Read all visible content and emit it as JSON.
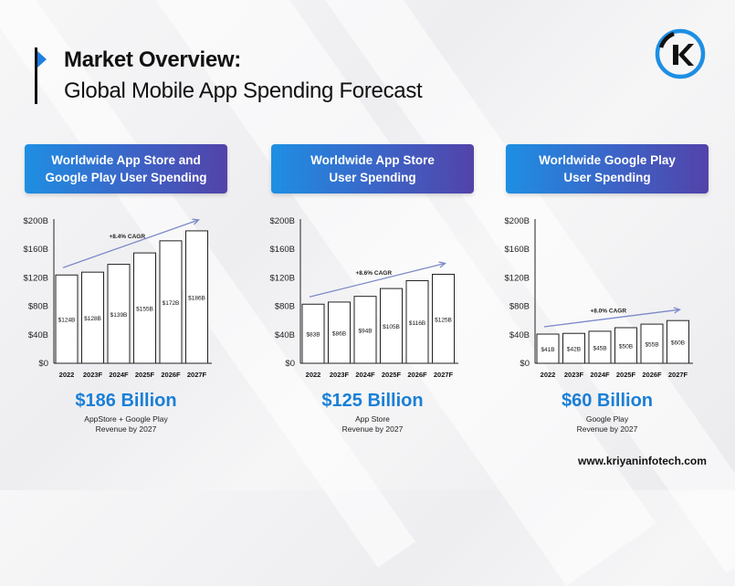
{
  "header": {
    "title_bold": "Market Overview:",
    "title_regular": "Global Mobile App Spending Forecast"
  },
  "logo": {
    "icon": "kriyan-logo-icon",
    "letter": "K",
    "colors": [
      "#1e8fe3",
      "#111111"
    ]
  },
  "accent_gradient": [
    "#1e8fe3",
    "#3d63c6",
    "#5243a9"
  ],
  "value_color": "#1a7fd6",
  "panels": [
    {
      "header_line1": "Worldwide App Store and",
      "header_line2": "Google Play User Spending",
      "highlight": "$186 Billion",
      "caption_line1": "AppStore + Google Play",
      "caption_line2": "Revenue by 2027"
    },
    {
      "header_line1": "Worldwide App Store",
      "header_line2": "User Spending",
      "highlight": "$125 Billion",
      "caption_line1": "App Store",
      "caption_line2": "Revenue by 2027"
    },
    {
      "header_line1": "Worldwide Google Play",
      "header_line2": "User Spending",
      "highlight": "$60 Billion",
      "caption_line1": "Google Play",
      "caption_line2": "Revenue by 2027"
    }
  ],
  "chart_data": [
    {
      "type": "bar",
      "categories": [
        "2022",
        "2023F",
        "2024F",
        "2025F",
        "2026F",
        "2027F"
      ],
      "values": [
        124,
        128,
        139,
        155,
        172,
        186
      ],
      "value_labels": [
        "$124B",
        "$128B",
        "$139B",
        "$155B",
        "$172B",
        "$186B"
      ],
      "y_ticks": [
        "$0",
        "$40B",
        "$80B",
        "$120B",
        "$160B",
        "$200B"
      ],
      "ylim": [
        0,
        200
      ],
      "annotation": "+8.4% CAGR",
      "grid": false
    },
    {
      "type": "bar",
      "categories": [
        "2022",
        "2023F",
        "2024F",
        "2025F",
        "2026F",
        "2027F"
      ],
      "values": [
        83,
        86,
        94,
        105,
        116,
        125
      ],
      "value_labels": [
        "$83B",
        "$86B",
        "$94B",
        "$105B",
        "$116B",
        "$125B"
      ],
      "y_ticks": [
        "$0",
        "$40B",
        "$80B",
        "$120B",
        "$160B",
        "$200B"
      ],
      "ylim": [
        0,
        200
      ],
      "annotation": "+8.6% CAGR",
      "grid": false
    },
    {
      "type": "bar",
      "categories": [
        "2022",
        "2023F",
        "2024F",
        "2025F",
        "2026F",
        "2027F"
      ],
      "values": [
        41,
        42,
        45,
        50,
        55,
        60
      ],
      "value_labels": [
        "$41B",
        "$42B",
        "$45B",
        "$50B",
        "$55B",
        "$60B"
      ],
      "y_ticks": [
        "$0",
        "$40B",
        "$80B",
        "$120B",
        "$160B",
        "$200B"
      ],
      "ylim": [
        0,
        200
      ],
      "annotation": "+8.0% CAGR",
      "grid": false
    }
  ],
  "footer": {
    "website": "www.kriyaninfotech.com"
  }
}
